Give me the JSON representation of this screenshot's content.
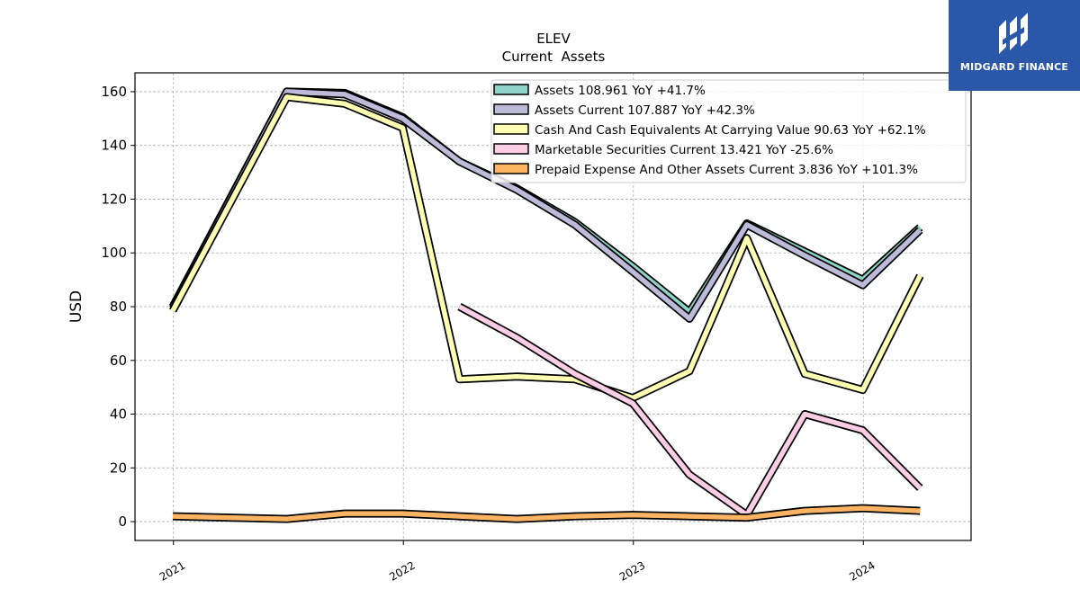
{
  "chart_data": {
    "type": "line",
    "title": "ELEV",
    "subtitle": "Current  Assets",
    "ylabel": "USD",
    "xlabel": "",
    "ylim": [
      -7,
      167
    ],
    "xlim": [
      "2020-11-01",
      "2024-06-20"
    ],
    "yticks": [
      0,
      20,
      40,
      60,
      80,
      100,
      120,
      140,
      160
    ],
    "xticks": [
      {
        "date": "2021-01-01",
        "label": "2021"
      },
      {
        "date": "2022-01-01",
        "label": "2022"
      },
      {
        "date": "2023-01-01",
        "label": "2023"
      },
      {
        "date": "2024-01-01",
        "label": "2024"
      }
    ],
    "grid": true,
    "legend_position": "top-right",
    "series": [
      {
        "name": "Assets  108.961 YoY +41.7%",
        "color": "#8dd3c7",
        "x": [
          "2020-12-31",
          "2021-06-30",
          "2021-09-30",
          "2021-12-31",
          "2022-03-31",
          "2022-06-30",
          "2022-09-30",
          "2022-12-31",
          "2023-03-31",
          "2023-06-30",
          "2023-09-30",
          "2023-12-31",
          "2024-03-31"
        ],
        "y": [
          80,
          160,
          159.5,
          150.5,
          134,
          124,
          111.5,
          95,
          78,
          111,
          100.5,
          90,
          109.5
        ]
      },
      {
        "name": "Assets Current  107.887 YoY +42.3%",
        "color": "#bebada",
        "x": [
          "2020-12-31",
          "2021-06-30",
          "2021-09-30",
          "2021-12-31",
          "2022-03-31",
          "2022-06-30",
          "2022-09-30",
          "2022-12-31",
          "2023-03-31",
          "2023-06-30",
          "2023-09-30",
          "2023-12-31",
          "2024-03-31"
        ],
        "y": [
          79.5,
          160,
          159,
          150,
          134,
          123.5,
          110.5,
          93,
          75.5,
          110.5,
          99,
          88,
          108.5
        ]
      },
      {
        "name": "Cash And Cash Equivalents At Carrying Value  90.63 YoY +62.1%",
        "color": "#ffffb3",
        "x": [
          "2020-12-31",
          "2021-06-30",
          "2021-09-30",
          "2021-12-31",
          "2022-03-31",
          "2022-06-30",
          "2022-09-30",
          "2022-12-31",
          "2023-03-31",
          "2023-06-30",
          "2023-09-30",
          "2023-12-31",
          "2024-03-31"
        ],
        "y": [
          78.5,
          158,
          155.5,
          146.5,
          53,
          54,
          53,
          46,
          56,
          105.5,
          55,
          49,
          91.5
        ]
      },
      {
        "name": "Marketable Securities Current  13.421 YoY -25.6%",
        "color": "#fccde5",
        "x": [
          "2022-03-31",
          "2022-06-30",
          "2022-09-30",
          "2022-12-31",
          "2023-03-31",
          "2023-06-30",
          "2023-09-30",
          "2023-12-31",
          "2024-03-31"
        ],
        "y": [
          80,
          68.5,
          55,
          44,
          17.5,
          2.5,
          40,
          34,
          12.5
        ]
      },
      {
        "name": "Prepaid Expense And Other Assets Current  3.836 YoY +101.3%",
        "color": "#fdb462",
        "x": [
          "2020-12-31",
          "2021-06-30",
          "2021-09-30",
          "2021-12-31",
          "2022-03-31",
          "2022-06-30",
          "2022-09-30",
          "2022-12-31",
          "2023-03-31",
          "2023-06-30",
          "2023-09-30",
          "2023-12-31",
          "2024-03-31"
        ],
        "y": [
          2,
          1,
          3,
          3,
          2,
          1,
          2,
          2.5,
          2,
          1.5,
          4,
          5,
          4
        ]
      }
    ]
  },
  "watermark": {
    "text": "MIDGARD FINANCE",
    "background": "#2a57a8"
  }
}
